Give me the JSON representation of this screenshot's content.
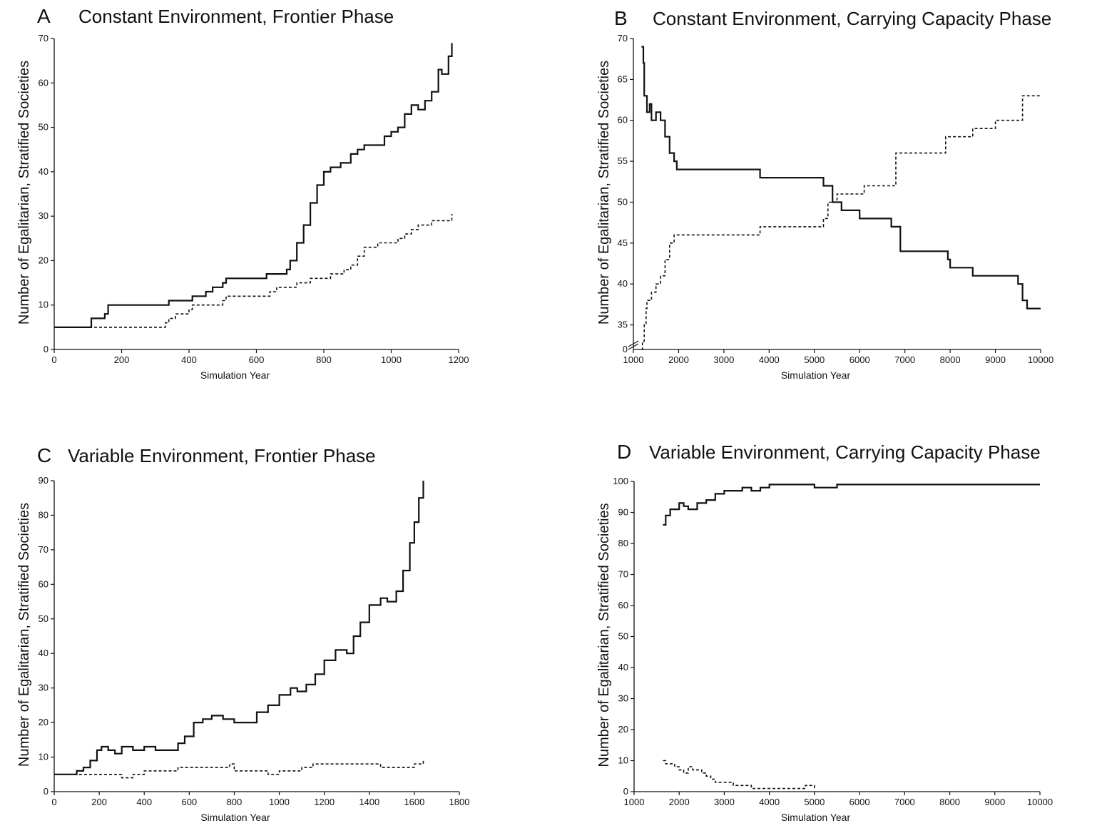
{
  "chart_data": [
    {
      "id": "A",
      "type": "line",
      "letter": "A",
      "title": "Constant Environment, Frontier Phase",
      "xlabel": "Simulation Year",
      "ylabel": "Number of Egalitarian, Stratified Societies",
      "xlim": [
        0,
        1200
      ],
      "ylim": [
        0,
        70
      ],
      "xticks": [
        0,
        200,
        400,
        600,
        800,
        1000,
        1200
      ],
      "yticks": [
        0,
        10,
        20,
        30,
        40,
        50,
        60,
        70
      ],
      "axis_break": false,
      "series": [
        {
          "style": "solid",
          "x": [
            0,
            100,
            110,
            150,
            160,
            330,
            340,
            400,
            410,
            450,
            470,
            500,
            510,
            620,
            630,
            690,
            700,
            720,
            740,
            760,
            780,
            800,
            820,
            850,
            880,
            900,
            920,
            950,
            980,
            1000,
            1020,
            1040,
            1060,
            1080,
            1100,
            1120,
            1140,
            1150,
            1160,
            1170,
            1180
          ],
          "y": [
            5,
            5,
            7,
            8,
            10,
            10,
            11,
            11,
            12,
            13,
            14,
            15,
            16,
            16,
            17,
            18,
            20,
            24,
            28,
            33,
            37,
            40,
            41,
            42,
            44,
            45,
            46,
            46,
            48,
            49,
            50,
            53,
            55,
            54,
            56,
            58,
            63,
            62,
            62,
            66,
            69
          ]
        },
        {
          "style": "dashed",
          "x": [
            0,
            320,
            330,
            340,
            360,
            400,
            410,
            440,
            470,
            500,
            510,
            600,
            640,
            660,
            700,
            720,
            760,
            800,
            820,
            860,
            880,
            900,
            920,
            940,
            960,
            1000,
            1020,
            1040,
            1060,
            1080,
            1100,
            1120,
            1140,
            1160,
            1180
          ],
          "y": [
            5,
            5,
            6,
            7,
            8,
            9,
            10,
            10,
            10,
            11,
            12,
            12,
            13,
            14,
            14,
            15,
            16,
            16,
            17,
            18,
            19,
            21,
            23,
            23,
            24,
            24,
            25,
            26,
            27,
            28,
            28,
            29,
            29,
            29,
            30.5
          ]
        }
      ]
    },
    {
      "id": "B",
      "type": "line",
      "letter": "B",
      "title": "Constant Environment, Carrying Capacity Phase",
      "xlabel": "Simulation Year",
      "ylabel": "Number of Egalitarian, Stratified Societies",
      "xlim": [
        1000,
        10000
      ],
      "ylim": [
        32,
        70
      ],
      "xticks": [
        1000,
        2000,
        3000,
        4000,
        5000,
        6000,
        7000,
        8000,
        9000,
        10000
      ],
      "yticks": [
        35,
        40,
        45,
        50,
        55,
        60,
        65,
        70
      ],
      "axis_break": true,
      "axis_break_label": "0",
      "series": [
        {
          "style": "solid",
          "x": [
            1180,
            1220,
            1240,
            1300,
            1360,
            1400,
            1500,
            1600,
            1700,
            1800,
            1900,
            1960,
            2000,
            3000,
            3800,
            4200,
            5000,
            5200,
            5400,
            5600,
            6000,
            6400,
            6700,
            6900,
            7800,
            7950,
            8000,
            8500,
            9000,
            9500,
            9600,
            9700,
            10000
          ],
          "y": [
            69,
            67,
            63,
            61,
            62,
            60,
            61,
            60,
            58,
            56,
            55,
            54,
            54,
            54,
            53,
            53,
            53,
            52,
            50,
            49,
            48,
            48,
            47,
            44,
            44,
            43,
            42,
            41,
            41,
            40,
            38,
            37,
            37
          ]
        },
        {
          "style": "dashed",
          "x": [
            1180,
            1200,
            1240,
            1280,
            1300,
            1400,
            1500,
            1600,
            1700,
            1800,
            1900,
            2000,
            3700,
            3800,
            4000,
            5000,
            5200,
            5300,
            5500,
            6000,
            6100,
            6700,
            6800,
            7800,
            7900,
            8400,
            8500,
            8900,
            9000,
            9500,
            9600,
            9700,
            10000
          ],
          "y": [
            32,
            33,
            35,
            37,
            38,
            39,
            40,
            41,
            43,
            45,
            46,
            46,
            46,
            47,
            47,
            47,
            48,
            50,
            51,
            51,
            52,
            52,
            56,
            56,
            58,
            58,
            59,
            59,
            60,
            60,
            63,
            63,
            63
          ]
        }
      ]
    },
    {
      "id": "C",
      "type": "line",
      "letter": "C",
      "title": "Variable Environment, Frontier Phase",
      "xlabel": "Simulation Year",
      "ylabel": "Number of Egalitarian, Stratified Societies",
      "xlim": [
        0,
        1800
      ],
      "ylim": [
        0,
        90
      ],
      "xticks": [
        0,
        200,
        400,
        600,
        800,
        1000,
        1200,
        1400,
        1600,
        1800
      ],
      "yticks": [
        0,
        10,
        20,
        30,
        40,
        50,
        60,
        70,
        80,
        90
      ],
      "axis_break": false,
      "series": [
        {
          "style": "solid",
          "x": [
            0,
            80,
            100,
            130,
            160,
            190,
            210,
            240,
            270,
            300,
            350,
            400,
            450,
            500,
            550,
            580,
            620,
            660,
            700,
            750,
            800,
            850,
            900,
            950,
            1000,
            1050,
            1080,
            1120,
            1160,
            1200,
            1250,
            1300,
            1330,
            1360,
            1400,
            1450,
            1480,
            1520,
            1550,
            1580,
            1600,
            1620,
            1640
          ],
          "y": [
            5,
            5,
            6,
            7,
            9,
            12,
            13,
            12,
            11,
            13,
            12,
            13,
            12,
            12,
            14,
            16,
            20,
            21,
            22,
            21,
            20,
            20,
            23,
            25,
            28,
            30,
            29,
            31,
            34,
            38,
            41,
            40,
            45,
            49,
            54,
            56,
            55,
            58,
            64,
            72,
            78,
            85,
            90
          ]
        },
        {
          "style": "dashed",
          "x": [
            0,
            280,
            300,
            350,
            400,
            500,
            550,
            600,
            700,
            780,
            800,
            850,
            950,
            1000,
            1050,
            1100,
            1150,
            1200,
            1300,
            1400,
            1450,
            1500,
            1600,
            1640
          ],
          "y": [
            5,
            5,
            4,
            5,
            6,
            6,
            7,
            7,
            7,
            8,
            6,
            6,
            5,
            6,
            6,
            7,
            8,
            8,
            8,
            8,
            7,
            7,
            8,
            9.5
          ]
        }
      ]
    },
    {
      "id": "D",
      "type": "line",
      "letter": "D",
      "title": "Variable Environment, Carrying Capacity Phase",
      "xlabel": "Simulation Year",
      "ylabel": "Number of Egalitarian, Stratified Societies",
      "xlim": [
        1000,
        10000
      ],
      "ylim": [
        0,
        100
      ],
      "xticks": [
        1000,
        2000,
        3000,
        4000,
        5000,
        6000,
        7000,
        8000,
        9000,
        10000
      ],
      "yticks": [
        0,
        10,
        20,
        30,
        40,
        50,
        60,
        70,
        80,
        90,
        100
      ],
      "axis_break": false,
      "series": [
        {
          "style": "solid",
          "x": [
            1640,
            1700,
            1800,
            1900,
            2000,
            2100,
            2200,
            2400,
            2600,
            2800,
            3000,
            3200,
            3400,
            3600,
            3800,
            4000,
            4500,
            5000,
            5500,
            6000,
            7000,
            8000,
            9000,
            10000
          ],
          "y": [
            86,
            89,
            91,
            91,
            93,
            92,
            91,
            93,
            94,
            96,
            97,
            97,
            98,
            97,
            98,
            99,
            99,
            98,
            99,
            99,
            99,
            99,
            99,
            99
          ]
        },
        {
          "style": "dashed",
          "x": [
            1640,
            1700,
            1800,
            1900,
            2000,
            2100,
            2200,
            2300,
            2400,
            2500,
            2600,
            2700,
            2800,
            3000,
            3200,
            3400,
            3600,
            3800,
            4000,
            4500,
            4800,
            5000
          ],
          "y": [
            10,
            9,
            9,
            8,
            7,
            6,
            8,
            7,
            7,
            6,
            5,
            4,
            3,
            3,
            2,
            2,
            1,
            1,
            1,
            1,
            2,
            1
          ]
        }
      ]
    }
  ]
}
